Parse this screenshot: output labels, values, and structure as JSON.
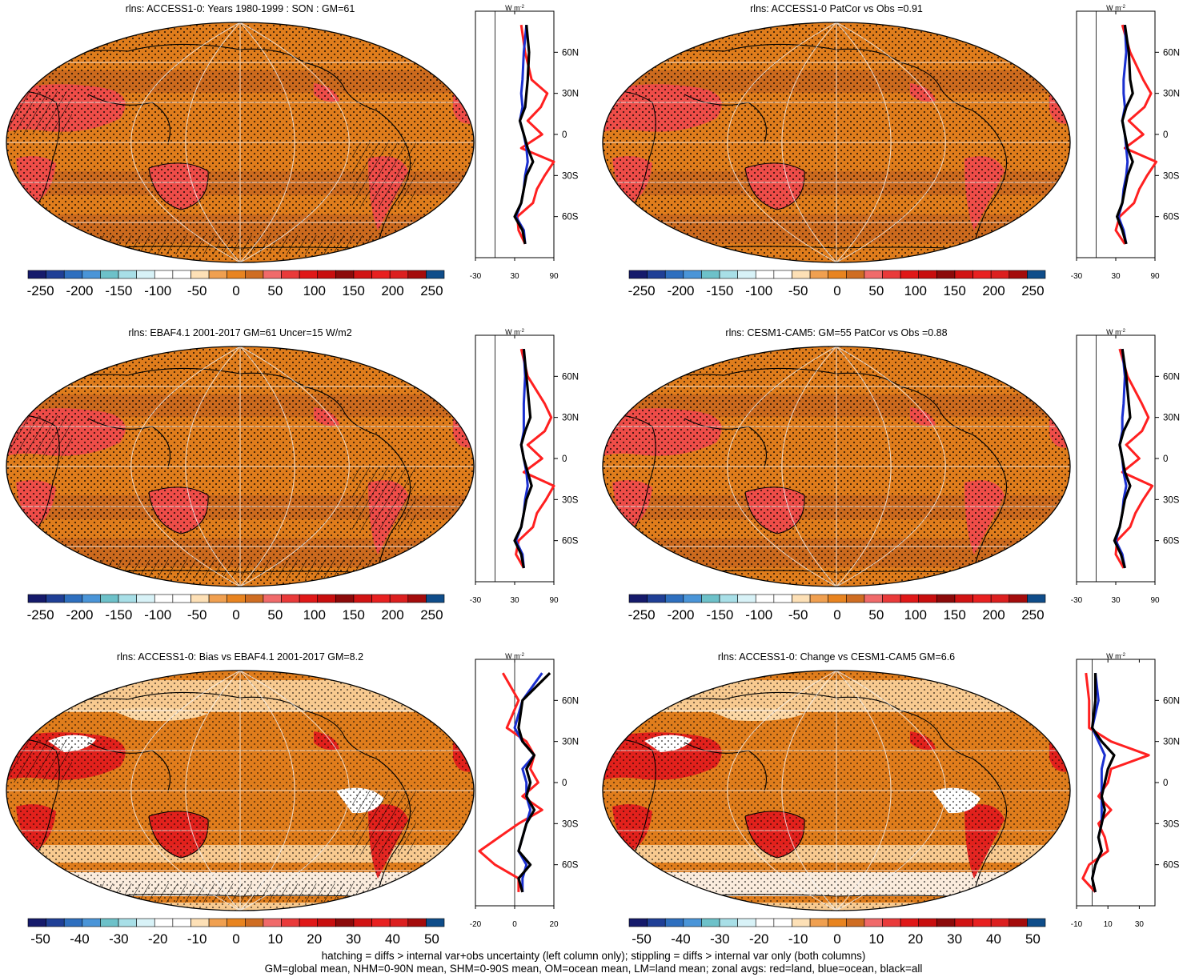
{
  "panels": [
    {
      "id": "p1",
      "title": "rlns: ACCESS1-0: Years 1980-1999 : SON : GM=61",
      "variant": "clim",
      "hatch": true,
      "stipple": "dense",
      "cbar": {
        "labels": [
          "-250",
          "-200",
          "-150",
          "-100",
          "-50",
          "0",
          "50",
          "100",
          "150",
          "200",
          "250"
        ]
      },
      "profile": {
        "unit": "W m",
        "xlim": [
          -30,
          90
        ],
        "xticks": [
          -30,
          30,
          90
        ],
        "ref": 0,
        "yticks": [
          "60N",
          "30N",
          "0",
          "30S",
          "60S"
        ]
      }
    },
    {
      "id": "p2",
      "title": "rlns: ACCESS1-0 PatCor vs Obs =0.91",
      "variant": "clim",
      "hatch": false,
      "stipple": "dense",
      "cbar": {
        "labels": [
          "-250",
          "-200",
          "-150",
          "-100",
          "-50",
          "0",
          "50",
          "100",
          "150",
          "200",
          "250"
        ]
      },
      "profile": {
        "unit": "W m",
        "xlim": [
          -30,
          90
        ],
        "xticks": [
          -30,
          30,
          90
        ],
        "ref": 0,
        "yticks": [
          "60N",
          "30N",
          "0",
          "30S",
          "60S"
        ]
      }
    },
    {
      "id": "p3",
      "title": "rlns: EBAF4.1 2001-2017 GM=61 Uncer=15 W/m2",
      "variant": "clim",
      "hatch": true,
      "stipple": "dense",
      "cbar": {
        "labels": [
          "-250",
          "-200",
          "-150",
          "-100",
          "-50",
          "0",
          "50",
          "100",
          "150",
          "200",
          "250"
        ]
      },
      "profile": {
        "unit": "W m",
        "xlim": [
          -30,
          90
        ],
        "xticks": [
          -30,
          30,
          90
        ],
        "ref": 0,
        "yticks": [
          "60N",
          "30N",
          "0",
          "30S",
          "60S"
        ]
      }
    },
    {
      "id": "p4",
      "title": "rlns: CESM1-CAM5: GM=55 PatCor vs Obs =0.88",
      "variant": "clim",
      "hatch": false,
      "stipple": "dense",
      "cbar": {
        "labels": [
          "-250",
          "-200",
          "-150",
          "-100",
          "-50",
          "0",
          "50",
          "100",
          "150",
          "200",
          "250"
        ]
      },
      "profile": {
        "unit": "W m",
        "xlim": [
          -30,
          90
        ],
        "xticks": [
          -30,
          30,
          90
        ],
        "ref": 0,
        "yticks": [
          "60N",
          "30N",
          "0",
          "30S",
          "60S"
        ]
      }
    },
    {
      "id": "p5",
      "title": "rlns: ACCESS1-0: Bias vs EBAF4.1 2001-2017  GM=8.2",
      "variant": "diff",
      "hatch": true,
      "stipple": "sparse",
      "cbar": {
        "labels": [
          "-50",
          "-40",
          "-30",
          "-20",
          "-10",
          "0",
          "10",
          "20",
          "30",
          "40",
          "50"
        ]
      },
      "profile": {
        "unit": "W m",
        "xlim": [
          -20,
          20
        ],
        "xticks": [
          -20,
          0,
          20
        ],
        "ref": 0,
        "yticks": [
          "60N",
          "30N",
          "0",
          "30S",
          "60S"
        ]
      }
    },
    {
      "id": "p6",
      "title": "rlns: ACCESS1-0: Change vs CESM1-CAM5 GM=6.6",
      "variant": "diff",
      "hatch": false,
      "stipple": "sparse",
      "cbar": {
        "labels": [
          "-50",
          "-40",
          "-30",
          "-20",
          "-10",
          "0",
          "10",
          "20",
          "30",
          "40",
          "50"
        ]
      },
      "profile": {
        "unit": "W m",
        "xlim": [
          -10,
          40
        ],
        "xticks": [
          -10,
          10,
          30
        ],
        "ref": 0,
        "yticks": [
          "60N",
          "30N",
          "0",
          "30S",
          "60S"
        ]
      }
    }
  ],
  "colors": {
    "palette": [
      "#151a6b",
      "#1f3f96",
      "#2e6fbf",
      "#4a95d8",
      "#6dc1c9",
      "#a8dfe7",
      "#d8f2f7",
      "#ffffff",
      "#ffffff",
      "#fde0b6",
      "#f0a050",
      "#e88420",
      "#cf6d22",
      "#f06a6a",
      "#e93a3a",
      "#e01818",
      "#c80e0e",
      "#8c0a0a",
      "#d11313",
      "#e82020",
      "#dc1f1f",
      "#a40c0c",
      "#0f4d8a"
    ],
    "land_line": "#ff2020",
    "ocean_line": "#1a2fd0",
    "all_line": "#000000",
    "map_base": "#e07d1c",
    "map_dark": "#cc6a1e",
    "map_hot": "#ef4b4b",
    "map_hotter": "#e21c1c",
    "map_light": "#fcd7a4",
    "map_white": "#ffffff"
  },
  "chart_data": [
    {
      "type": "heatmap",
      "title": "rlns: ACCESS1-0: Years 1980-1999 : SON : GM=61",
      "colorbar_range": [
        -250,
        250
      ],
      "zonal_profile": {
        "lat": [
          80,
          60,
          40,
          30,
          20,
          10,
          0,
          -10,
          -20,
          -30,
          -40,
          -50,
          -60,
          -70,
          -80
        ],
        "all": [
          48,
          52,
          50,
          48,
          46,
          38,
          44,
          50,
          58,
          48,
          44,
          40,
          30,
          42,
          46
        ],
        "ocean": [
          48,
          44,
          42,
          40,
          42,
          38,
          44,
          48,
          50,
          46,
          44,
          40,
          32,
          44,
          46
        ],
        "land": [
          40,
          46,
          56,
          80,
          70,
          50,
          72,
          40,
          90,
          76,
          64,
          58,
          34,
          36,
          46
        ]
      }
    },
    {
      "type": "heatmap",
      "title": "rlns: ACCESS1-0 PatCor vs Obs =0.91",
      "colorbar_range": [
        -250,
        250
      ],
      "zonal_profile": {
        "lat": [
          80,
          60,
          40,
          30,
          20,
          10,
          0,
          -10,
          -20,
          -30,
          -40,
          -50,
          -60,
          -70,
          -80
        ],
        "all": [
          44,
          50,
          52,
          56,
          46,
          40,
          44,
          48,
          56,
          48,
          44,
          40,
          32,
          40,
          46
        ],
        "ocean": [
          44,
          46,
          42,
          42,
          44,
          40,
          44,
          46,
          48,
          46,
          42,
          40,
          34,
          42,
          46
        ],
        "land": [
          40,
          52,
          72,
          84,
          74,
          50,
          72,
          44,
          92,
          78,
          66,
          58,
          36,
          30,
          44
        ]
      }
    },
    {
      "type": "heatmap",
      "title": "rlns: EBAF4.1 2001-2017 GM=61 Uncer=15 W/m2",
      "colorbar_range": [
        -250,
        250
      ],
      "zonal_profile": {
        "lat": [
          80,
          60,
          40,
          30,
          20,
          10,
          0,
          -10,
          -20,
          -30,
          -40,
          -50,
          -60,
          -70,
          -80
        ],
        "all": [
          44,
          48,
          52,
          54,
          46,
          40,
          44,
          50,
          56,
          48,
          44,
          40,
          30,
          40,
          44
        ],
        "ocean": [
          44,
          46,
          44,
          44,
          44,
          40,
          44,
          48,
          50,
          46,
          44,
          40,
          32,
          42,
          44
        ],
        "land": [
          40,
          50,
          76,
          86,
          76,
          50,
          72,
          44,
          90,
          78,
          64,
          58,
          36,
          32,
          44
        ]
      }
    },
    {
      "type": "heatmap",
      "title": "rlns: CESM1-CAM5: GM=55 PatCor vs Obs =0.88",
      "colorbar_range": [
        -250,
        250
      ],
      "zonal_profile": {
        "lat": [
          80,
          60,
          40,
          30,
          20,
          10,
          0,
          -10,
          -20,
          -30,
          -40,
          -50,
          -60,
          -70,
          -80
        ],
        "all": [
          40,
          46,
          50,
          52,
          42,
          36,
          40,
          44,
          52,
          44,
          40,
          36,
          28,
          38,
          44
        ],
        "ocean": [
          40,
          44,
          42,
          40,
          40,
          36,
          40,
          42,
          46,
          42,
          40,
          36,
          30,
          40,
          44
        ],
        "land": [
          36,
          48,
          70,
          80,
          70,
          46,
          66,
          40,
          86,
          72,
          60,
          52,
          32,
          30,
          42
        ]
      }
    },
    {
      "type": "heatmap",
      "title": "rlns: ACCESS1-0: Bias vs EBAF4.1 2001-2017  GM=8.2",
      "colorbar_range": [
        -50,
        50
      ],
      "zonal_profile": {
        "lat": [
          80,
          60,
          40,
          30,
          20,
          10,
          0,
          -10,
          -20,
          -30,
          -40,
          -50,
          -60,
          -70,
          -80
        ],
        "all": [
          18,
          4,
          2,
          4,
          10,
          6,
          8,
          6,
          10,
          6,
          4,
          2,
          8,
          2,
          4
        ],
        "ocean": [
          14,
          4,
          0,
          4,
          10,
          4,
          6,
          6,
          8,
          6,
          4,
          2,
          6,
          4,
          4
        ],
        "land": [
          -6,
          2,
          -4,
          6,
          10,
          8,
          12,
          4,
          14,
          2,
          -8,
          -18,
          -10,
          2,
          2
        ]
      }
    },
    {
      "type": "heatmap",
      "title": "rlns: ACCESS1-0: Change vs CESM1-CAM5 GM=6.6",
      "colorbar_range": [
        -50,
        50
      ],
      "zonal_profile": {
        "lat": [
          80,
          60,
          40,
          30,
          20,
          10,
          0,
          -10,
          -20,
          -30,
          -40,
          -50,
          -60,
          -70,
          -80
        ],
        "all": [
          2,
          2,
          0,
          6,
          14,
          10,
          8,
          6,
          8,
          6,
          4,
          6,
          2,
          0,
          2
        ],
        "ocean": [
          2,
          4,
          0,
          4,
          8,
          6,
          6,
          6,
          6,
          6,
          4,
          6,
          2,
          0,
          2
        ],
        "land": [
          -4,
          -2,
          -2,
          12,
          36,
          12,
          10,
          4,
          12,
          4,
          8,
          10,
          -2,
          -6,
          2
        ]
      }
    }
  ],
  "footer": {
    "line1": "hatching = diffs > internal var+obs uncertainty (left column only); stippling = diffs > internal var only (both columns)",
    "line2": "GM=global mean, NHM=0-90N mean, SHM=0-90S mean, OM=ocean mean, LM=land mean; zonal avgs: red=land, blue=ocean, black=all"
  }
}
